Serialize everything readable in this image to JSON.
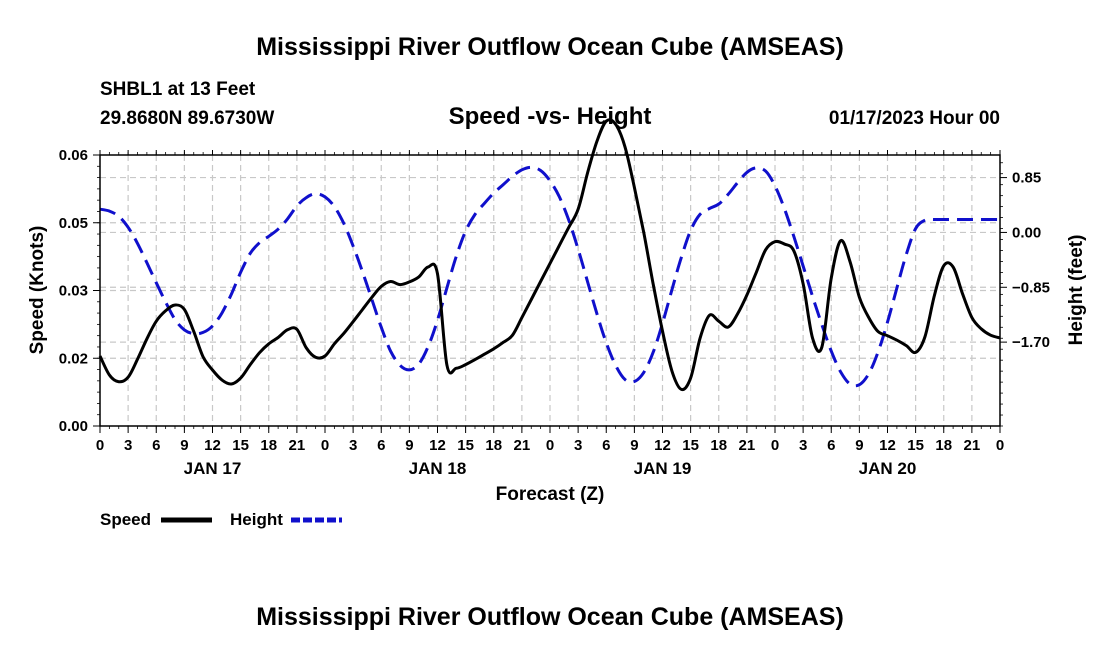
{
  "header": {
    "title": "Mississippi River Outflow Ocean Cube (AMSEAS)",
    "station": "SHBL1 at 13 Feet",
    "position": "29.8680N  89.6730W",
    "date": "01/17/2023 Hour 00"
  },
  "footer": {
    "title": "Mississippi River Outflow Ocean Cube (AMSEAS)"
  },
  "colors": {
    "speed": "#000000",
    "height": "#1010cc",
    "grid": "#c8c8c8"
  },
  "chart_data": {
    "type": "line",
    "title": "Speed -vs- Height",
    "xlabel": "Forecast (Z)",
    "ylabel": "Speed (Knots)",
    "y2label": "Height (feet)",
    "xlim": [
      0,
      96
    ],
    "ylim": [
      0,
      0.06
    ],
    "y2lim": [
      -3.0,
      1.2
    ],
    "x_tick_labels": [
      "0",
      "3",
      "6",
      "9",
      "12",
      "15",
      "18",
      "21",
      "0",
      "3",
      "6",
      "9",
      "12",
      "15",
      "18",
      "21",
      "0",
      "3",
      "6",
      "9",
      "12",
      "15",
      "18",
      "21",
      "0",
      "3",
      "6",
      "9",
      "12",
      "15",
      "18",
      "21",
      "0"
    ],
    "day_labels": [
      {
        "label": "JAN 17",
        "x": 12
      },
      {
        "label": "JAN 18",
        "x": 36
      },
      {
        "label": "JAN 19",
        "x": 60
      },
      {
        "label": "JAN 20",
        "x": 84
      }
    ],
    "y_ticks": [
      "0.00",
      "0.02",
      "0.03",
      "0.05",
      "0.06"
    ],
    "y_tick_values": [
      0,
      0.015,
      0.03,
      0.045,
      0.06
    ],
    "y2_ticks": [
      "0.85",
      "0.00",
      "−0.85",
      "−1.70"
    ],
    "y2_tick_values": [
      0.85,
      0.0,
      -0.85,
      -1.7
    ],
    "legend": [
      {
        "name": "Speed",
        "style": "solid"
      },
      {
        "name": "Height",
        "style": "dashed"
      }
    ],
    "series": [
      {
        "name": "Speed",
        "axis": "left",
        "style": "solid",
        "x": [
          0,
          1,
          2,
          3,
          4,
          5,
          6,
          7,
          8,
          9,
          10,
          11,
          12,
          13,
          14,
          15,
          16,
          17,
          18,
          19,
          20,
          21,
          22,
          23,
          24,
          25,
          26,
          27,
          28,
          29,
          30,
          31,
          32,
          33,
          34,
          35,
          36,
          37,
          38,
          39,
          40,
          41,
          42,
          43,
          44,
          45,
          46,
          47,
          48,
          49,
          50,
          51,
          52,
          53,
          54,
          55,
          56,
          57,
          58,
          59,
          60,
          61,
          62,
          63,
          64,
          65,
          66,
          67,
          68,
          69,
          70,
          71,
          72,
          73,
          74,
          75,
          76,
          77,
          78,
          79,
          80,
          81,
          82,
          83,
          84,
          85,
          86,
          87,
          88,
          89,
          90,
          91,
          92,
          93,
          94,
          95,
          96
        ],
        "values": [
          0.0155,
          0.0113,
          0.0098,
          0.0108,
          0.0148,
          0.0193,
          0.0232,
          0.0255,
          0.0268,
          0.0258,
          0.0209,
          0.0153,
          0.0124,
          0.0102,
          0.0093,
          0.0106,
          0.0135,
          0.0162,
          0.0182,
          0.0196,
          0.0213,
          0.0214,
          0.0173,
          0.0152,
          0.0155,
          0.0182,
          0.0205,
          0.0231,
          0.0258,
          0.0285,
          0.0309,
          0.032,
          0.0313,
          0.0319,
          0.033,
          0.0352,
          0.0337,
          0.0135,
          0.0128,
          0.0136,
          0.0147,
          0.0159,
          0.0171,
          0.0185,
          0.0201,
          0.024,
          0.028,
          0.032,
          0.036,
          0.04,
          0.044,
          0.048,
          0.056,
          0.063,
          0.0675,
          0.0668,
          0.0618,
          0.0528,
          0.0428,
          0.0315,
          0.021,
          0.0122,
          0.0081,
          0.0106,
          0.0194,
          0.0245,
          0.0232,
          0.0219,
          0.0248,
          0.029,
          0.034,
          0.039,
          0.0408,
          0.0403,
          0.0388,
          0.0315,
          0.0195,
          0.0175,
          0.0328,
          0.041,
          0.0364,
          0.0285,
          0.024,
          0.0209,
          0.02,
          0.019,
          0.0178,
          0.0163,
          0.0198,
          0.0289,
          0.0355,
          0.0352,
          0.0293,
          0.024,
          0.0215,
          0.0201,
          0.0195
        ]
      },
      {
        "name": "Height",
        "axis": "right",
        "style": "dashed",
        "x": [
          0,
          1,
          2,
          3,
          4,
          5,
          6,
          7,
          8,
          9,
          10,
          11,
          12,
          13,
          14,
          15,
          16,
          17,
          18,
          19,
          20,
          21,
          22,
          23,
          24,
          25,
          26,
          27,
          28,
          29,
          30,
          31,
          32,
          33,
          34,
          35,
          36,
          37,
          38,
          39,
          40,
          41,
          42,
          43,
          44,
          45,
          46,
          47,
          48,
          49,
          50,
          51,
          52,
          53,
          54,
          55,
          56,
          57,
          58,
          59,
          60,
          61,
          62,
          63,
          64,
          65,
          66,
          67,
          68,
          69,
          70,
          71,
          72,
          73,
          74,
          75,
          76,
          77,
          78,
          79,
          80,
          81,
          82,
          83,
          84,
          85,
          86,
          87,
          88,
          89,
          90,
          91,
          92,
          93,
          94,
          95,
          96
        ],
        "values": [
          0.36,
          0.33,
          0.25,
          0.08,
          -0.17,
          -0.47,
          -0.78,
          -1.08,
          -1.35,
          -1.51,
          -1.57,
          -1.55,
          -1.45,
          -1.25,
          -0.96,
          -0.62,
          -0.33,
          -0.16,
          -0.06,
          0.05,
          0.21,
          0.41,
          0.54,
          0.6,
          0.55,
          0.4,
          0.14,
          -0.21,
          -0.61,
          -1.04,
          -1.47,
          -1.84,
          -2.06,
          -2.13,
          -2.04,
          -1.77,
          -1.36,
          -0.86,
          -0.37,
          0.02,
          0.28,
          0.45,
          0.61,
          0.74,
          0.87,
          0.97,
          1.01,
          0.96,
          0.8,
          0.55,
          0.19,
          -0.26,
          -0.76,
          -1.26,
          -1.71,
          -2.06,
          -2.28,
          -2.31,
          -2.17,
          -1.86,
          -1.41,
          -0.89,
          -0.39,
          0.03,
          0.28,
          0.37,
          0.44,
          0.59,
          0.77,
          0.93,
          1.0,
          0.95,
          0.72,
          0.37,
          -0.06,
          -0.52,
          -0.99,
          -1.43,
          -1.84,
          -2.16,
          -2.35,
          -2.36,
          -2.19,
          -1.85,
          -1.39,
          -0.86,
          -0.34,
          0.06,
          0.19,
          0.2,
          0.2,
          0.2,
          0.2,
          0.2,
          0.2,
          0.2,
          0.2
        ]
      }
    ]
  }
}
